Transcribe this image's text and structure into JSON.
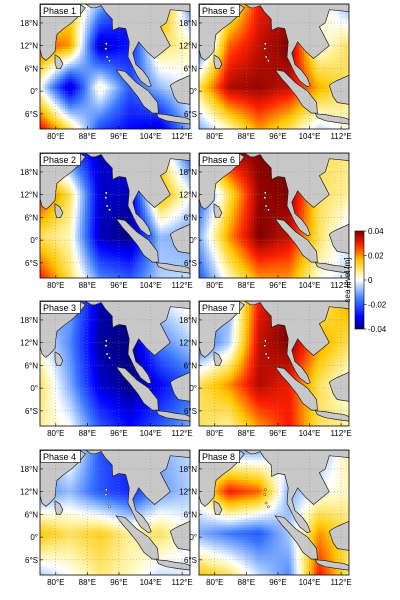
{
  "panels": [
    {
      "title": "Phase 1",
      "anomaly": [
        [
          -0.01,
          0.012,
          -0.008,
          -0.03,
          0.025,
          -0.014
        ],
        [
          0.028,
          0.02,
          -0.036,
          -0.028,
          0.01,
          0.004
        ],
        [
          0.0,
          -0.036,
          0.004,
          -0.02,
          -0.008,
          0.0
        ],
        [
          0.032,
          0.01,
          -0.022,
          -0.03,
          -0.034,
          -0.008
        ]
      ]
    },
    {
      "title": "Phase 2",
      "anomaly": [
        [
          -0.004,
          -0.02,
          -0.036,
          -0.03,
          0.01,
          -0.02
        ],
        [
          0.03,
          0.01,
          -0.034,
          -0.036,
          0.02,
          0.0
        ],
        [
          0.01,
          0.004,
          -0.036,
          -0.04,
          -0.008,
          -0.012
        ],
        [
          0.03,
          0.01,
          -0.014,
          -0.02,
          -0.006,
          -0.004
        ]
      ]
    },
    {
      "title": "Phase 3",
      "anomaly": [
        [
          -0.02,
          -0.01,
          -0.036,
          -0.04,
          -0.004,
          0.004
        ],
        [
          0.0,
          -0.014,
          -0.038,
          -0.04,
          -0.014,
          -0.006
        ],
        [
          0.01,
          -0.01,
          -0.034,
          -0.04,
          -0.03,
          -0.02
        ],
        [
          0.006,
          0.0,
          -0.02,
          -0.03,
          -0.02,
          -0.01
        ]
      ]
    },
    {
      "title": "Phase 4",
      "anomaly": [
        [
          -0.01,
          0.004,
          -0.02,
          -0.028,
          -0.01,
          -0.004
        ],
        [
          -0.014,
          -0.008,
          -0.02,
          -0.026,
          -0.012,
          -0.006
        ],
        [
          0.016,
          0.01,
          0.014,
          0.006,
          0.01,
          0.0
        ],
        [
          -0.006,
          0.0,
          0.008,
          0.004,
          -0.004,
          -0.002
        ]
      ]
    },
    {
      "title": "Phase 5",
      "anomaly": [
        [
          -0.014,
          0.004,
          0.03,
          0.036,
          0.006,
          -0.01
        ],
        [
          -0.02,
          0.024,
          0.034,
          0.04,
          0.0,
          0.01
        ],
        [
          0.01,
          0.036,
          0.038,
          0.034,
          0.018,
          0.01
        ],
        [
          -0.01,
          0.004,
          0.02,
          0.01,
          -0.004,
          0.002
        ]
      ]
    },
    {
      "title": "Phase 6",
      "anomaly": [
        [
          0.016,
          0.036,
          0.04,
          0.04,
          0.01,
          0.008
        ],
        [
          -0.02,
          0.01,
          0.038,
          0.04,
          0.01,
          0.006
        ],
        [
          -0.01,
          0.02,
          0.04,
          0.034,
          0.01,
          -0.004
        ],
        [
          -0.02,
          0.004,
          0.02,
          0.02,
          0.002,
          -0.004
        ]
      ]
    },
    {
      "title": "Phase 7",
      "anomaly": [
        [
          -0.004,
          -0.01,
          0.03,
          0.04,
          0.006,
          0.02
        ],
        [
          -0.02,
          -0.006,
          0.034,
          0.04,
          0.02,
          0.01
        ],
        [
          0.01,
          0.02,
          0.036,
          0.03,
          0.01,
          0.0
        ],
        [
          0.01,
          0.006,
          0.02,
          0.03,
          0.01,
          0.006
        ]
      ]
    },
    {
      "title": "Phase 8",
      "anomaly": [
        [
          0.01,
          -0.01,
          -0.01,
          0.004,
          -0.01,
          0.006
        ],
        [
          0.004,
          0.03,
          0.024,
          -0.01,
          0.0,
          0.004
        ],
        [
          -0.01,
          -0.016,
          -0.02,
          -0.006,
          0.02,
          0.01
        ],
        [
          0.016,
          0.01,
          -0.004,
          -0.014,
          0.03,
          0.008
        ]
      ]
    }
  ],
  "lat_ticks": [
    "18°N",
    "12°N",
    "6°N",
    "0°",
    "6°S"
  ],
  "lon_ticks": [
    "80°E",
    "88°E",
    "96°E",
    "104°E",
    "112°E"
  ],
  "colorbar": {
    "label": "sea level [m]",
    "ticks": [
      "0.04",
      "0.02",
      "0",
      "-0.02",
      "-0.04"
    ],
    "range": [
      -0.04,
      0.04
    ]
  },
  "colors": {
    "land": "#c8c8c8",
    "coast": "#222222",
    "high": "#7f0000",
    "low": "#00007f"
  }
}
